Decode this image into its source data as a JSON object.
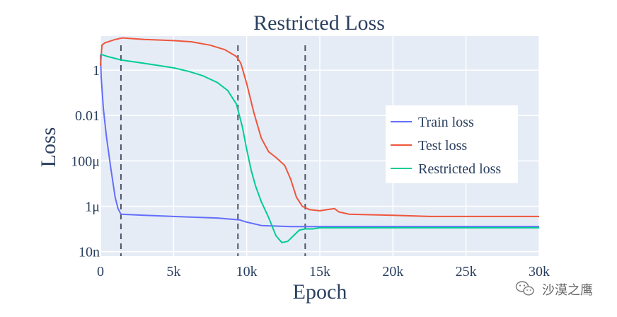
{
  "chart_data": {
    "type": "line",
    "title": "Restricted Loss",
    "xlabel": "Epoch",
    "ylabel": "Loss",
    "xlim": [
      0,
      30000
    ],
    "ylim_log10": [
      -8.2,
      1.5
    ],
    "x_ticks": [
      {
        "value": 0,
        "label": "0"
      },
      {
        "value": 5000,
        "label": "5k"
      },
      {
        "value": 10000,
        "label": "10k"
      },
      {
        "value": 15000,
        "label": "15k"
      },
      {
        "value": 20000,
        "label": "20k"
      },
      {
        "value": 25000,
        "label": "25k"
      },
      {
        "value": 30000,
        "label": "30k"
      }
    ],
    "y_ticks": [
      {
        "log10": 0,
        "label": "1"
      },
      {
        "log10": -2,
        "label": "0.01"
      },
      {
        "log10": -4,
        "label": "100μ"
      },
      {
        "log10": -6,
        "label": "1μ"
      },
      {
        "log10": -8,
        "label": "10n"
      }
    ],
    "vlines": [
      1400,
      9400,
      14000
    ],
    "legend_position": "right",
    "series": [
      {
        "name": "Train loss",
        "color": "#636efa",
        "points": [
          [
            0,
            0.68
          ],
          [
            50,
            -0.3
          ],
          [
            200,
            -1.7
          ],
          [
            400,
            -2.9
          ],
          [
            700,
            -4.3
          ],
          [
            1000,
            -5.6
          ],
          [
            1200,
            -6.1
          ],
          [
            1400,
            -6.35
          ],
          [
            3000,
            -6.4
          ],
          [
            5000,
            -6.45
          ],
          [
            8000,
            -6.52
          ],
          [
            9500,
            -6.6
          ],
          [
            10000,
            -6.7
          ],
          [
            11000,
            -6.85
          ],
          [
            13000,
            -6.9
          ],
          [
            15000,
            -6.9
          ],
          [
            20000,
            -6.9
          ],
          [
            30000,
            -6.9
          ]
        ]
      },
      {
        "name": "Test loss",
        "color": "#ef553b",
        "points": [
          [
            0,
            0.2
          ],
          [
            100,
            1.1
          ],
          [
            300,
            1.2
          ],
          [
            1000,
            1.35
          ],
          [
            1500,
            1.42
          ],
          [
            3000,
            1.35
          ],
          [
            5000,
            1.3
          ],
          [
            6200,
            1.25
          ],
          [
            7500,
            1.1
          ],
          [
            8500,
            0.9
          ],
          [
            9300,
            0.6
          ],
          [
            9600,
            0.3
          ],
          [
            10000,
            -0.6
          ],
          [
            10500,
            -1.9
          ],
          [
            11000,
            -3.0
          ],
          [
            11500,
            -3.6
          ],
          [
            12000,
            -3.85
          ],
          [
            12600,
            -4.2
          ],
          [
            13000,
            -4.8
          ],
          [
            13400,
            -5.6
          ],
          [
            13800,
            -6.0
          ],
          [
            14300,
            -6.15
          ],
          [
            15000,
            -6.2
          ],
          [
            15500,
            -6.15
          ],
          [
            16000,
            -6.1
          ],
          [
            16300,
            -6.25
          ],
          [
            17000,
            -6.35
          ],
          [
            20000,
            -6.4
          ],
          [
            22500,
            -6.45
          ],
          [
            30000,
            -6.45
          ]
        ]
      },
      {
        "name": "Restricted loss",
        "color": "#00cc96",
        "points": [
          [
            0,
            0.7
          ],
          [
            500,
            0.6
          ],
          [
            1400,
            0.45
          ],
          [
            3000,
            0.3
          ],
          [
            5000,
            0.1
          ],
          [
            6000,
            -0.05
          ],
          [
            7000,
            -0.25
          ],
          [
            8000,
            -0.55
          ],
          [
            8700,
            -0.9
          ],
          [
            9300,
            -1.5
          ],
          [
            9700,
            -2.5
          ],
          [
            10000,
            -3.5
          ],
          [
            10300,
            -4.4
          ],
          [
            10600,
            -5.1
          ],
          [
            11000,
            -5.8
          ],
          [
            11500,
            -6.5
          ],
          [
            12000,
            -7.3
          ],
          [
            12400,
            -7.6
          ],
          [
            12800,
            -7.55
          ],
          [
            13200,
            -7.3
          ],
          [
            13600,
            -7.05
          ],
          [
            14000,
            -7.0
          ],
          [
            14500,
            -7.0
          ],
          [
            15000,
            -6.95
          ],
          [
            17000,
            -6.95
          ],
          [
            20000,
            -6.95
          ],
          [
            30000,
            -6.95
          ]
        ]
      }
    ]
  },
  "watermark": {
    "text": "沙漠之鹰",
    "icon": "wechat-icon"
  }
}
